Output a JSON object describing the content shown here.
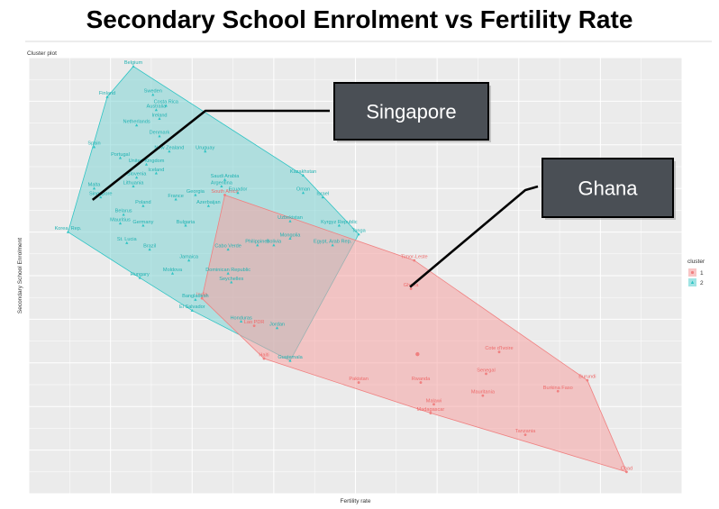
{
  "title": "Secondary School Enrolment vs Fertility Rate",
  "chart_data": {
    "type": "scatter",
    "subtitle": "Cluster plot",
    "xlabel": "Fertility rate",
    "ylabel": "Secondary School Enrolment",
    "grid": true,
    "legend_title": "cluster",
    "legend_position": "right",
    "xlim": [
      0,
      100
    ],
    "ylim": [
      0,
      100
    ],
    "series": [
      {
        "name": "1",
        "marker": "circle",
        "points": [
          {
            "label": "South Africa",
            "x": 30.0,
            "y": 68.5
          },
          {
            "label": "India",
            "x": 26.5,
            "y": 44.8
          },
          {
            "label": "Lao PDR",
            "x": 34.5,
            "y": 38.5
          },
          {
            "label": "Haiti",
            "x": 36.0,
            "y": 31.0
          },
          {
            "label": "Timor-Leste",
            "x": 59.0,
            "y": 53.5
          },
          {
            "label": "Ghana",
            "x": 58.5,
            "y": 47.0
          },
          {
            "label": "",
            "x": 59.5,
            "y": 32.0
          },
          {
            "label": "Cote d'Ivoire",
            "x": 72.0,
            "y": 32.5
          },
          {
            "label": "Senegal",
            "x": 70.0,
            "y": 27.5
          },
          {
            "label": "Pakistan",
            "x": 50.5,
            "y": 25.5
          },
          {
            "label": "Rwanda",
            "x": 60.0,
            "y": 25.5
          },
          {
            "label": "Mauritania",
            "x": 69.5,
            "y": 22.5
          },
          {
            "label": "Malawi",
            "x": 62.0,
            "y": 20.5
          },
          {
            "label": "Madagascar",
            "x": 61.5,
            "y": 18.5
          },
          {
            "label": "Burkina Faso",
            "x": 81.0,
            "y": 23.5
          },
          {
            "label": "Burundi",
            "x": 85.5,
            "y": 26.0
          },
          {
            "label": "Tanzania",
            "x": 76.0,
            "y": 13.5
          },
          {
            "label": "Chad",
            "x": 91.5,
            "y": 5.0
          }
        ]
      },
      {
        "name": "2",
        "marker": "triangle",
        "points": [
          {
            "label": "Belgium",
            "x": 16.0,
            "y": 98.0
          },
          {
            "label": "Finland",
            "x": 12.0,
            "y": 91.0
          },
          {
            "label": "Sweden",
            "x": 19.0,
            "y": 91.5
          },
          {
            "label": "Costa Rica",
            "x": 21.0,
            "y": 89.0
          },
          {
            "label": "Australia",
            "x": 19.5,
            "y": 88.0
          },
          {
            "label": "Ireland",
            "x": 20.0,
            "y": 86.0
          },
          {
            "label": "Netherlands",
            "x": 16.5,
            "y": 84.5
          },
          {
            "label": "Denmark",
            "x": 20.0,
            "y": 82.0
          },
          {
            "label": "Spain",
            "x": 10.0,
            "y": 79.5
          },
          {
            "label": "Portugal",
            "x": 14.0,
            "y": 77.0
          },
          {
            "label": "New Zealand",
            "x": 21.5,
            "y": 78.5
          },
          {
            "label": "Uruguay",
            "x": 27.0,
            "y": 78.5
          },
          {
            "label": "United Kingdom",
            "x": 18.0,
            "y": 75.5
          },
          {
            "label": "Iceland",
            "x": 19.5,
            "y": 73.5
          },
          {
            "label": "Slovenia",
            "x": 16.5,
            "y": 72.5
          },
          {
            "label": "Saudi Arabia",
            "x": 30.0,
            "y": 72.0
          },
          {
            "label": "Argentina",
            "x": 29.5,
            "y": 70.5
          },
          {
            "label": "Kazakhstan",
            "x": 42.0,
            "y": 73.0
          },
          {
            "label": "Oman",
            "x": 42.0,
            "y": 69.0
          },
          {
            "label": "Israel",
            "x": 45.0,
            "y": 68.0
          },
          {
            "label": "Lithuania",
            "x": 16.0,
            "y": 70.5
          },
          {
            "label": "Malta",
            "x": 10.0,
            "y": 70.0
          },
          {
            "label": "Singapore",
            "x": 11.0,
            "y": 68.0
          },
          {
            "label": "France",
            "x": 22.5,
            "y": 67.5
          },
          {
            "label": "Georgia",
            "x": 25.5,
            "y": 68.5
          },
          {
            "label": "Azerbaijan",
            "x": 27.5,
            "y": 66.0
          },
          {
            "label": "Ecuador",
            "x": 32.0,
            "y": 69.0
          },
          {
            "label": "Poland",
            "x": 17.5,
            "y": 66.0
          },
          {
            "label": "Belarus",
            "x": 14.5,
            "y": 64.0
          },
          {
            "label": "Germany",
            "x": 17.5,
            "y": 61.5
          },
          {
            "label": "Bulgaria",
            "x": 24.0,
            "y": 61.5
          },
          {
            "label": "Mauritius",
            "x": 14.0,
            "y": 62.0
          },
          {
            "label": "Korea, Rep.",
            "x": 6.0,
            "y": 60.0
          },
          {
            "label": "St. Lucia",
            "x": 15.0,
            "y": 57.5
          },
          {
            "label": "Uzbekistan",
            "x": 40.0,
            "y": 62.5
          },
          {
            "label": "Kyrgyz Republic",
            "x": 47.5,
            "y": 61.5
          },
          {
            "label": "Tonga",
            "x": 50.5,
            "y": 59.5
          },
          {
            "label": "Mongolia",
            "x": 40.0,
            "y": 58.5
          },
          {
            "label": "Egypt, Arab Rep.",
            "x": 46.5,
            "y": 57.0
          },
          {
            "label": "Philippines",
            "x": 35.0,
            "y": 57.0
          },
          {
            "label": "Bolivia",
            "x": 37.5,
            "y": 57.0
          },
          {
            "label": "Cabo Verde",
            "x": 30.5,
            "y": 56.0
          },
          {
            "label": "Brazil",
            "x": 18.5,
            "y": 56.0
          },
          {
            "label": "Jamaica",
            "x": 24.5,
            "y": 53.5
          },
          {
            "label": "Dominican Republic",
            "x": 30.5,
            "y": 50.5
          },
          {
            "label": "Seychelles",
            "x": 31.0,
            "y": 48.5
          },
          {
            "label": "Hungary",
            "x": 17.0,
            "y": 49.5
          },
          {
            "label": "Moldova",
            "x": 22.0,
            "y": 50.5
          },
          {
            "label": "Bangladesh",
            "x": 25.5,
            "y": 44.5
          },
          {
            "label": "El Salvador",
            "x": 25.0,
            "y": 42.0
          },
          {
            "label": "Honduras",
            "x": 32.5,
            "y": 39.5
          },
          {
            "label": "Jordan",
            "x": 38.0,
            "y": 38.0
          },
          {
            "label": "Guatemala",
            "x": 40.0,
            "y": 30.5
          }
        ]
      }
    ]
  },
  "legend": {
    "title": "cluster",
    "items": [
      {
        "label": "1",
        "color": "#f08080"
      },
      {
        "label": "2",
        "color": "#2ec4c4"
      }
    ]
  },
  "callouts": [
    {
      "name": "singapore-callout",
      "text": "Singapore"
    },
    {
      "name": "ghana-callout",
      "text": "Ghana"
    }
  ],
  "colors": {
    "cluster1": "#f08080",
    "cluster1_fill": "#f5a3a3",
    "cluster2": "#2ec4c4",
    "cluster2_fill": "#7dd4d4",
    "panel": "#ebebeb",
    "callout_bg": "#4a4f55"
  }
}
